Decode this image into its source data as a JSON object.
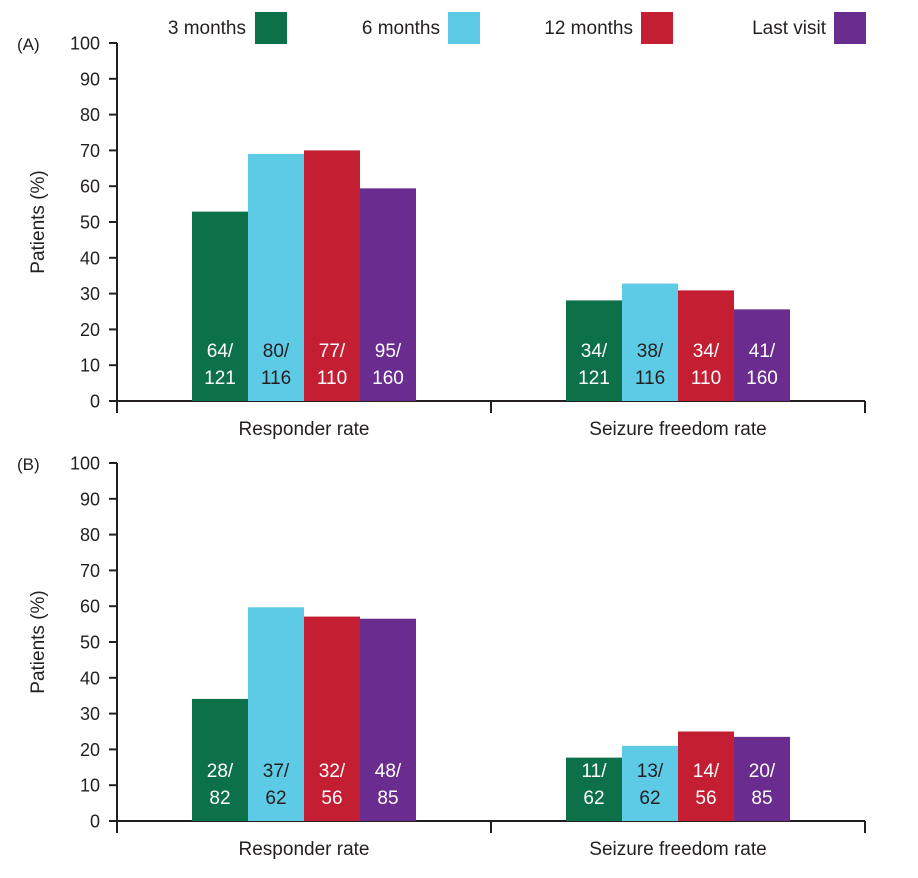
{
  "chart_data": [
    {
      "type": "bar",
      "panel_label": "(A)",
      "ylabel": "Patients (%)",
      "ylim": [
        0,
        100
      ],
      "yticks": [
        0,
        10,
        20,
        30,
        40,
        50,
        60,
        70,
        80,
        90,
        100
      ],
      "categories": [
        "Responder rate",
        "Seizure freedom rate"
      ],
      "grid": false,
      "series": [
        {
          "name": "3 months",
          "color": "#0c7149",
          "values": [
            52.9,
            28.1
          ],
          "labels": [
            [
              "64/",
              "121"
            ],
            [
              "34/",
              "121"
            ]
          ],
          "label_color": "#ffffff"
        },
        {
          "name": "6 months",
          "color": "#5ecbe6",
          "values": [
            69.0,
            32.8
          ],
          "labels": [
            [
              "80/",
              "116"
            ],
            [
              "38/",
              "116"
            ]
          ],
          "label_color": "#231f20"
        },
        {
          "name": "12 months",
          "color": "#c41e32",
          "values": [
            70.0,
            30.9
          ],
          "labels": [
            [
              "77/",
              "110"
            ],
            [
              "34/",
              "110"
            ]
          ],
          "label_color": "#ffffff"
        },
        {
          "name": "Last visit",
          "color": "#6a2c8e",
          "values": [
            59.4,
            25.6
          ],
          "labels": [
            [
              "95/",
              "160"
            ],
            [
              "41/",
              "160"
            ]
          ],
          "label_color": "#ffffff"
        }
      ]
    },
    {
      "type": "bar",
      "panel_label": "(B)",
      "ylabel": "Patients (%)",
      "ylim": [
        0,
        100
      ],
      "yticks": [
        0,
        10,
        20,
        30,
        40,
        50,
        60,
        70,
        80,
        90,
        100
      ],
      "categories": [
        "Responder rate",
        "Seizure freedom rate"
      ],
      "grid": false,
      "series": [
        {
          "name": "3 months",
          "color": "#0c7149",
          "values": [
            34.1,
            17.7
          ],
          "labels": [
            [
              "28/",
              "82"
            ],
            [
              "11/",
              "62"
            ]
          ],
          "label_color": "#ffffff"
        },
        {
          "name": "6 months",
          "color": "#5ecbe6",
          "values": [
            59.7,
            21.0
          ],
          "labels": [
            [
              "37/",
              "62"
            ],
            [
              "13/",
              "62"
            ]
          ],
          "label_color": "#231f20"
        },
        {
          "name": "12 months",
          "color": "#c41e32",
          "values": [
            57.1,
            25.0
          ],
          "labels": [
            [
              "32/",
              "56"
            ],
            [
              "14/",
              "56"
            ]
          ],
          "label_color": "#ffffff"
        },
        {
          "name": "Last visit",
          "color": "#6a2c8e",
          "values": [
            56.5,
            23.5
          ],
          "labels": [
            [
              "48/",
              "85"
            ],
            [
              "20/",
              "85"
            ]
          ],
          "label_color": "#ffffff"
        }
      ]
    }
  ],
  "legend": {
    "placement": "top",
    "items": [
      {
        "label": "3 months",
        "color": "#0c7149"
      },
      {
        "label": "6 months",
        "color": "#5ecbe6"
      },
      {
        "label": "12 months",
        "color": "#c41e32"
      },
      {
        "label": "Last visit",
        "color": "#6a2c8e"
      }
    ]
  }
}
